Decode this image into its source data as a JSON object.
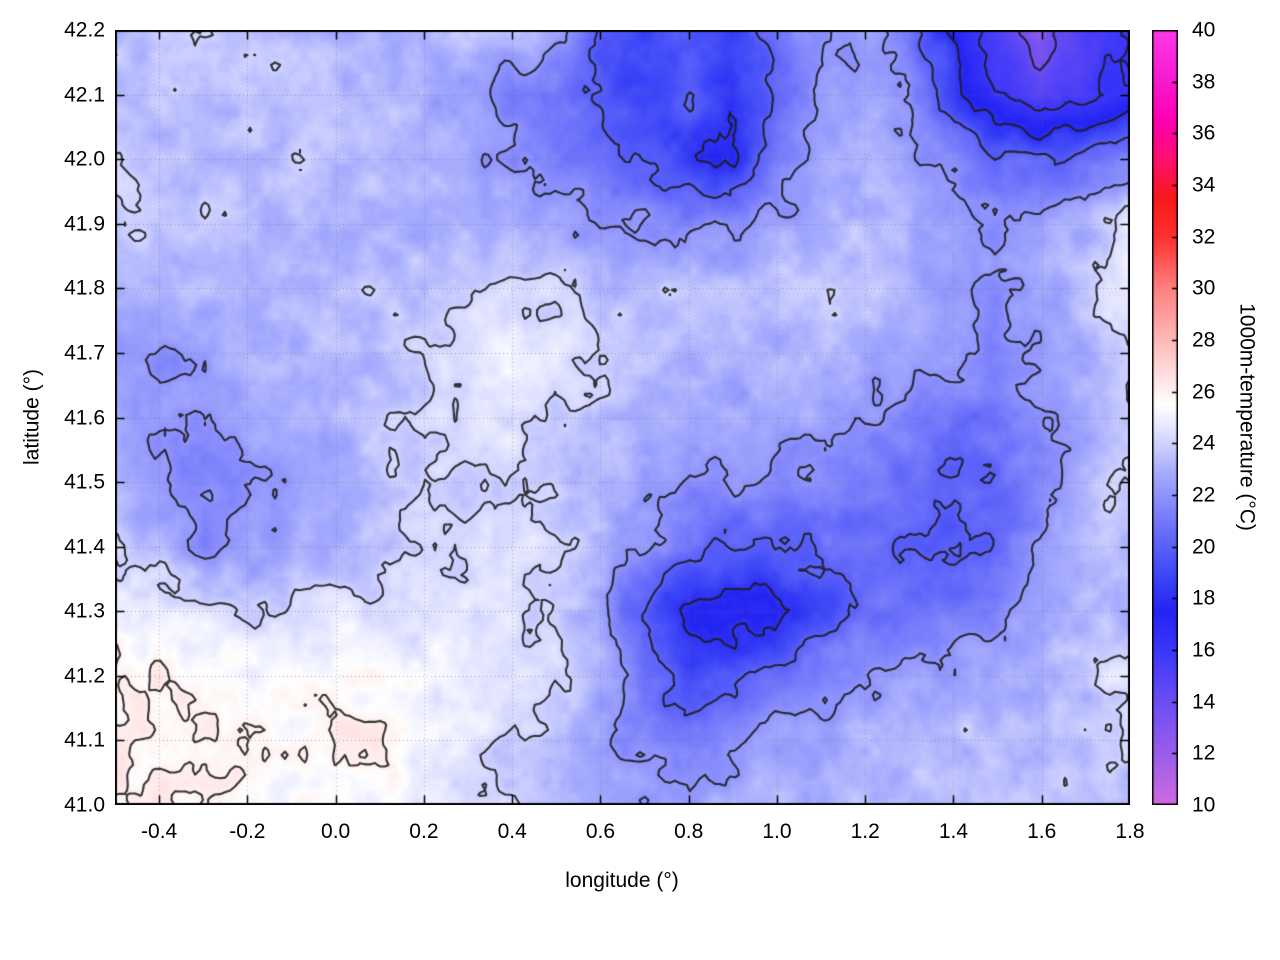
{
  "chart_data": {
    "type": "heatmap",
    "title": "",
    "xlabel": "longitude (°)",
    "ylabel": "latitude (°)",
    "colorbar_label": "1000m-temperature (°C)",
    "x_range": [
      -0.5,
      1.8
    ],
    "y_range": [
      41.0,
      42.2
    ],
    "c_range": [
      10,
      40
    ],
    "grid_on": true,
    "legend_position": "none",
    "x_ticks": [
      -0.4,
      -0.2,
      0.0,
      0.2,
      0.4,
      0.6,
      0.8,
      1.0,
      1.2,
      1.4,
      1.6,
      1.8
    ],
    "x_tick_labels": [
      "-0.4",
      "-0.2",
      "0.0",
      "0.2",
      "0.4",
      "0.6",
      "0.8",
      "1.0",
      "1.2",
      "1.4",
      "1.6",
      "1.8"
    ],
    "y_ticks": [
      41.0,
      41.1,
      41.2,
      41.3,
      41.4,
      41.5,
      41.6,
      41.7,
      41.8,
      41.9,
      42.0,
      42.1,
      42.2
    ],
    "y_tick_labels": [
      "41.0",
      "41.1",
      "41.2",
      "41.3",
      "41.4",
      "41.5",
      "41.6",
      "41.7",
      "41.8",
      "41.9",
      "42.0",
      "42.1",
      "42.2"
    ],
    "cb_ticks": [
      10,
      12,
      14,
      16,
      18,
      20,
      22,
      24,
      26,
      28,
      30,
      32,
      34,
      36,
      38,
      40
    ],
    "cb_tick_labels": [
      "10",
      "12",
      "14",
      "16",
      "18",
      "20",
      "22",
      "24",
      "26",
      "28",
      "30",
      "32",
      "34",
      "36",
      "38",
      "40"
    ],
    "contour_levels": [
      14,
      16,
      18,
      20,
      22,
      24,
      26
    ],
    "colormap": [
      [
        10,
        "#d06ae0"
      ],
      [
        12,
        "#9a5cec"
      ],
      [
        14,
        "#6a4ef4"
      ],
      [
        16,
        "#3a36fa"
      ],
      [
        17.5,
        "#2424f2"
      ],
      [
        19,
        "#4049f8"
      ],
      [
        21,
        "#7478fb"
      ],
      [
        23,
        "#aab0fd"
      ],
      [
        24.5,
        "#e2e3ff"
      ],
      [
        25.5,
        "#ffffff"
      ],
      [
        26.5,
        "#ffe3e3"
      ],
      [
        28,
        "#ffb8b8"
      ],
      [
        30,
        "#ff8080"
      ],
      [
        32,
        "#ff3030"
      ],
      [
        33.5,
        "#f81818"
      ],
      [
        35,
        "#ff1070"
      ],
      [
        36.5,
        "#ff00b0"
      ],
      [
        38,
        "#f818d0"
      ],
      [
        40,
        "#ff38e8"
      ]
    ],
    "grid": {
      "lon_min": -0.5,
      "lon_max": 1.8,
      "lat_min": 41.0,
      "lat_max": 42.2,
      "nx": 24,
      "ny": 13,
      "row_order": "north-to-south",
      "values": [
        [
          23.5,
          23.5,
          23.5,
          23.5,
          23.5,
          23.0,
          23.0,
          23.0,
          23.5,
          23.5,
          22.5,
          20.0,
          19.0,
          19.5,
          19.0,
          21.0,
          22.0,
          22.5,
          21.0,
          18.0,
          15.0,
          13.0,
          15.0,
          16.0
        ],
        [
          23.5,
          23.5,
          23.5,
          23.5,
          23.5,
          23.5,
          23.0,
          23.0,
          22.5,
          21.5,
          20.5,
          19.5,
          18.5,
          20.0,
          18.0,
          20.5,
          22.0,
          22.5,
          22.0,
          19.0,
          16.0,
          15.0,
          15.5,
          16.5
        ],
        [
          24.0,
          23.5,
          23.5,
          23.5,
          23.5,
          23.5,
          23.5,
          23.0,
          22.5,
          22.0,
          21.5,
          21.0,
          20.0,
          18.5,
          17.5,
          21.0,
          22.5,
          23.0,
          22.5,
          22.0,
          20.5,
          20.0,
          20.5,
          21.0
        ],
        [
          24.0,
          23.5,
          23.5,
          23.0,
          23.0,
          23.0,
          23.0,
          23.0,
          23.0,
          23.0,
          22.5,
          22.0,
          22.0,
          21.5,
          22.0,
          22.5,
          23.0,
          23.5,
          23.0,
          22.5,
          22.0,
          22.5,
          23.0,
          25.0
        ],
        [
          23.5,
          23.0,
          23.0,
          23.5,
          23.5,
          23.5,
          23.5,
          23.5,
          24.0,
          24.0,
          24.0,
          23.5,
          23.5,
          23.5,
          23.5,
          23.5,
          23.5,
          23.5,
          23.0,
          22.5,
          22.0,
          22.5,
          23.5,
          25.0
        ],
        [
          22.5,
          22.0,
          22.5,
          23.0,
          23.0,
          23.5,
          23.5,
          24.0,
          24.5,
          25.0,
          24.5,
          24.0,
          23.5,
          23.5,
          23.0,
          23.0,
          23.0,
          23.0,
          22.5,
          22.0,
          21.5,
          22.0,
          23.0,
          23.5
        ],
        [
          22.5,
          22.0,
          22.0,
          22.5,
          23.0,
          23.0,
          23.5,
          24.0,
          24.5,
          24.5,
          24.0,
          23.5,
          23.0,
          22.5,
          22.5,
          22.5,
          22.5,
          22.0,
          21.5,
          21.0,
          21.0,
          22.0,
          22.5,
          24.0
        ],
        [
          23.0,
          22.0,
          21.5,
          22.0,
          22.5,
          23.0,
          23.5,
          24.0,
          24.0,
          24.0,
          23.5,
          23.0,
          22.5,
          22.0,
          22.0,
          22.0,
          21.5,
          21.0,
          20.5,
          20.0,
          20.5,
          21.5,
          23.0,
          24.5
        ],
        [
          24.0,
          23.0,
          22.0,
          22.0,
          22.5,
          23.0,
          23.5,
          24.0,
          24.0,
          24.5,
          24.0,
          23.0,
          22.0,
          20.5,
          20.0,
          20.0,
          20.5,
          20.5,
          20.0,
          19.5,
          20.5,
          22.0,
          23.0,
          23.5
        ],
        [
          25.0,
          25.0,
          24.5,
          24.0,
          24.0,
          24.5,
          24.5,
          24.5,
          24.5,
          24.5,
          24.0,
          22.5,
          19.5,
          17.5,
          17.0,
          17.5,
          19.0,
          20.5,
          21.0,
          21.0,
          21.5,
          22.5,
          23.0,
          23.0
        ],
        [
          26.0,
          26.0,
          25.5,
          25.5,
          25.5,
          25.5,
          25.5,
          25.0,
          25.0,
          25.0,
          24.5,
          23.0,
          20.5,
          19.0,
          19.5,
          20.5,
          21.5,
          22.0,
          22.5,
          22.5,
          23.0,
          23.0,
          23.5,
          25.0
        ],
        [
          26.5,
          26.0,
          26.0,
          26.0,
          25.5,
          26.0,
          26.0,
          25.0,
          24.5,
          24.0,
          23.5,
          22.5,
          21.5,
          21.0,
          22.0,
          22.5,
          22.5,
          23.0,
          23.0,
          23.5,
          23.5,
          23.5,
          23.5,
          24.0
        ],
        [
          26.0,
          26.0,
          26.0,
          25.5,
          25.5,
          25.5,
          25.5,
          25.0,
          24.5,
          24.0,
          23.5,
          23.0,
          22.5,
          22.5,
          23.0,
          23.0,
          23.0,
          23.5,
          23.5,
          23.5,
          23.5,
          23.5,
          23.5,
          23.5
        ]
      ]
    }
  }
}
